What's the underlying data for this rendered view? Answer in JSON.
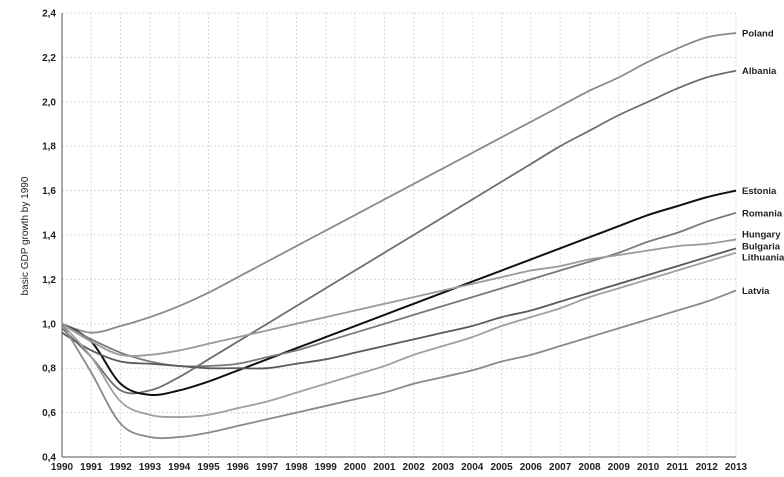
{
  "chart_data": {
    "type": "line",
    "title": "",
    "xlabel": "",
    "ylabel": "basic GDP growth by 1990",
    "xlim": [
      1990,
      2013
    ],
    "ylim": [
      0.4,
      2.4
    ],
    "x_ticks": [
      "1990",
      "1991",
      "1992",
      "1993",
      "1994",
      "1995",
      "1996",
      "1997",
      "1998",
      "1999",
      "2000",
      "2001",
      "2002",
      "2003",
      "2004",
      "2005",
      "2006",
      "2007",
      "2008",
      "2009",
      "2010",
      "2011",
      "2012",
      "2013"
    ],
    "y_ticks": [
      "0,4",
      "0,6",
      "0,8",
      "1,0",
      "1,2",
      "1,4",
      "1,6",
      "1,8",
      "2,0",
      "2,2",
      "2,4"
    ],
    "grid": true,
    "legend": "labels at line ends (right)",
    "series": [
      {
        "name": "Poland",
        "color": "#8a8a8a",
        "points": [
          [
            1990,
            1.0
          ],
          [
            1991,
            0.96
          ],
          [
            1992,
            0.99
          ],
          [
            1993,
            1.03
          ],
          [
            1994,
            1.08
          ],
          [
            1995,
            1.14
          ],
          [
            1996,
            1.21
          ],
          [
            1997,
            1.28
          ],
          [
            1998,
            1.35
          ],
          [
            1999,
            1.42
          ],
          [
            2000,
            1.49
          ],
          [
            2001,
            1.56
          ],
          [
            2002,
            1.63
          ],
          [
            2003,
            1.7
          ],
          [
            2004,
            1.77
          ],
          [
            2005,
            1.84
          ],
          [
            2006,
            1.91
          ],
          [
            2007,
            1.98
          ],
          [
            2008,
            2.05
          ],
          [
            2009,
            2.11
          ],
          [
            2010,
            2.18
          ],
          [
            2011,
            2.24
          ],
          [
            2012,
            2.29
          ],
          [
            2013,
            2.31
          ]
        ]
      },
      {
        "name": "Albania",
        "color": "#6e6e6e",
        "points": [
          [
            1990,
            0.98
          ],
          [
            1991,
            0.85
          ],
          [
            1992,
            0.7
          ],
          [
            1993,
            0.7
          ],
          [
            1994,
            0.76
          ],
          [
            1995,
            0.84
          ],
          [
            1996,
            0.92
          ],
          [
            1997,
            1.0
          ],
          [
            1998,
            1.08
          ],
          [
            1999,
            1.16
          ],
          [
            2000,
            1.24
          ],
          [
            2001,
            1.32
          ],
          [
            2002,
            1.4
          ],
          [
            2003,
            1.48
          ],
          [
            2004,
            1.56
          ],
          [
            2005,
            1.64
          ],
          [
            2006,
            1.72
          ],
          [
            2007,
            1.8
          ],
          [
            2008,
            1.87
          ],
          [
            2009,
            1.94
          ],
          [
            2010,
            2.0
          ],
          [
            2011,
            2.06
          ],
          [
            2012,
            2.11
          ],
          [
            2013,
            2.14
          ]
        ]
      },
      {
        "name": "Estonia",
        "color": "#111111",
        "points": [
          [
            1990,
            1.0
          ],
          [
            1991,
            0.92
          ],
          [
            1992,
            0.73
          ],
          [
            1993,
            0.68
          ],
          [
            1994,
            0.7
          ],
          [
            1995,
            0.74
          ],
          [
            1996,
            0.79
          ],
          [
            1997,
            0.84
          ],
          [
            1998,
            0.89
          ],
          [
            1999,
            0.94
          ],
          [
            2000,
            0.99
          ],
          [
            2001,
            1.04
          ],
          [
            2002,
            1.09
          ],
          [
            2003,
            1.14
          ],
          [
            2004,
            1.19
          ],
          [
            2005,
            1.24
          ],
          [
            2006,
            1.29
          ],
          [
            2007,
            1.34
          ],
          [
            2008,
            1.39
          ],
          [
            2009,
            1.44
          ],
          [
            2010,
            1.49
          ],
          [
            2011,
            1.53
          ],
          [
            2012,
            1.57
          ],
          [
            2013,
            1.6
          ]
        ]
      },
      {
        "name": "Romania",
        "color": "#7a7a7a",
        "points": [
          [
            1990,
            1.0
          ],
          [
            1991,
            0.93
          ],
          [
            1992,
            0.87
          ],
          [
            1993,
            0.83
          ],
          [
            1994,
            0.81
          ],
          [
            1995,
            0.81
          ],
          [
            1996,
            0.82
          ],
          [
            1997,
            0.85
          ],
          [
            1998,
            0.88
          ],
          [
            1999,
            0.92
          ],
          [
            2000,
            0.96
          ],
          [
            2001,
            1.0
          ],
          [
            2002,
            1.04
          ],
          [
            2003,
            1.08
          ],
          [
            2004,
            1.12
          ],
          [
            2005,
            1.16
          ],
          [
            2006,
            1.2
          ],
          [
            2007,
            1.24
          ],
          [
            2008,
            1.28
          ],
          [
            2009,
            1.32
          ],
          [
            2010,
            1.37
          ],
          [
            2011,
            1.41
          ],
          [
            2012,
            1.46
          ],
          [
            2013,
            1.5
          ]
        ]
      },
      {
        "name": "Hungary",
        "color": "#9a9a9a",
        "points": [
          [
            1990,
            1.0
          ],
          [
            1991,
            0.92
          ],
          [
            1992,
            0.86
          ],
          [
            1993,
            0.86
          ],
          [
            1994,
            0.88
          ],
          [
            1995,
            0.91
          ],
          [
            1996,
            0.94
          ],
          [
            1997,
            0.97
          ],
          [
            1998,
            1.0
          ],
          [
            1999,
            1.03
          ],
          [
            2000,
            1.06
          ],
          [
            2001,
            1.09
          ],
          [
            2002,
            1.12
          ],
          [
            2003,
            1.15
          ],
          [
            2004,
            1.18
          ],
          [
            2005,
            1.21
          ],
          [
            2006,
            1.24
          ],
          [
            2007,
            1.26
          ],
          [
            2008,
            1.29
          ],
          [
            2009,
            1.31
          ],
          [
            2010,
            1.33
          ],
          [
            2011,
            1.35
          ],
          [
            2012,
            1.36
          ],
          [
            2013,
            1.38
          ]
        ]
      },
      {
        "name": "Bulgaria",
        "color": "#5a5a5a",
        "points": [
          [
            1990,
            0.96
          ],
          [
            1991,
            0.88
          ],
          [
            1992,
            0.83
          ],
          [
            1993,
            0.82
          ],
          [
            1994,
            0.81
          ],
          [
            1995,
            0.8
          ],
          [
            1996,
            0.8
          ],
          [
            1997,
            0.8
          ],
          [
            1998,
            0.82
          ],
          [
            1999,
            0.84
          ],
          [
            2000,
            0.87
          ],
          [
            2001,
            0.9
          ],
          [
            2002,
            0.93
          ],
          [
            2003,
            0.96
          ],
          [
            2004,
            0.99
          ],
          [
            2005,
            1.03
          ],
          [
            2006,
            1.06
          ],
          [
            2007,
            1.1
          ],
          [
            2008,
            1.14
          ],
          [
            2009,
            1.18
          ],
          [
            2010,
            1.22
          ],
          [
            2011,
            1.26
          ],
          [
            2012,
            1.3
          ],
          [
            2013,
            1.34
          ]
        ]
      },
      {
        "name": "Lithuania",
        "color": "#a0a0a0",
        "points": [
          [
            1990,
            1.0
          ],
          [
            1991,
            0.85
          ],
          [
            1992,
            0.65
          ],
          [
            1993,
            0.59
          ],
          [
            1994,
            0.58
          ],
          [
            1995,
            0.59
          ],
          [
            1996,
            0.62
          ],
          [
            1997,
            0.65
          ],
          [
            1998,
            0.69
          ],
          [
            1999,
            0.73
          ],
          [
            2000,
            0.77
          ],
          [
            2001,
            0.81
          ],
          [
            2002,
            0.86
          ],
          [
            2003,
            0.9
          ],
          [
            2004,
            0.94
          ],
          [
            2005,
            0.99
          ],
          [
            2006,
            1.03
          ],
          [
            2007,
            1.07
          ],
          [
            2008,
            1.12
          ],
          [
            2009,
            1.16
          ],
          [
            2010,
            1.2
          ],
          [
            2011,
            1.24
          ],
          [
            2012,
            1.28
          ],
          [
            2013,
            1.32
          ]
        ]
      },
      {
        "name": "Latvia",
        "color": "#8a8a8a",
        "points": [
          [
            1990,
            1.0
          ],
          [
            1991,
            0.78
          ],
          [
            1992,
            0.55
          ],
          [
            1993,
            0.49
          ],
          [
            1994,
            0.49
          ],
          [
            1995,
            0.51
          ],
          [
            1996,
            0.54
          ],
          [
            1997,
            0.57
          ],
          [
            1998,
            0.6
          ],
          [
            1999,
            0.63
          ],
          [
            2000,
            0.66
          ],
          [
            2001,
            0.69
          ],
          [
            2002,
            0.73
          ],
          [
            2003,
            0.76
          ],
          [
            2004,
            0.79
          ],
          [
            2005,
            0.83
          ],
          [
            2006,
            0.86
          ],
          [
            2007,
            0.9
          ],
          [
            2008,
            0.94
          ],
          [
            2009,
            0.98
          ],
          [
            2010,
            1.02
          ],
          [
            2011,
            1.06
          ],
          [
            2012,
            1.1
          ],
          [
            2013,
            1.15
          ]
        ]
      }
    ],
    "end_labels": [
      {
        "name": "Poland",
        "y": 2.31
      },
      {
        "name": "Albania",
        "y": 2.14
      },
      {
        "name": "Estonia",
        "y": 1.6
      },
      {
        "name": "Romania",
        "y": 1.5
      },
      {
        "name": "Hungary",
        "y": 1.405
      },
      {
        "name": "Bulgaria",
        "y": 1.35
      },
      {
        "name": "Lithuania",
        "y": 1.3
      },
      {
        "name": "Latvia",
        "y": 1.15
      }
    ]
  }
}
